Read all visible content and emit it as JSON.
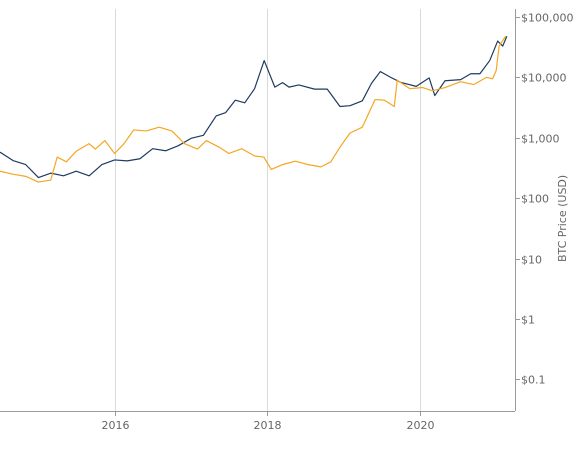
{
  "chart_data": {
    "type": "line",
    "title": "",
    "xlabel": "",
    "ylabel": "BTC Price (USD)",
    "y_scale": "log",
    "ylim": [
      0.03,
      100000
    ],
    "xlim": [
      "2014-07-01",
      "2021-04-01"
    ],
    "grid": {
      "x": true,
      "y": false
    },
    "y_ticks": [
      {
        "value": 100000,
        "label": "$100,000"
      },
      {
        "value": 10000,
        "label": "$10,000"
      },
      {
        "value": 1000,
        "label": "$1,000"
      },
      {
        "value": 100,
        "label": "$100"
      },
      {
        "value": 10,
        "label": "$10"
      },
      {
        "value": 1,
        "label": "$1"
      },
      {
        "value": 0.1,
        "label": "$0.1"
      }
    ],
    "x_ticks": [
      {
        "value": "2016-01-01",
        "label": "2016"
      },
      {
        "value": "2018-01-01",
        "label": "2018"
      },
      {
        "value": "2020-01-01",
        "label": "2020"
      }
    ],
    "series": [
      {
        "color": "#1f3a5f",
        "points": [
          [
            "2014-07-01",
            580
          ],
          [
            "2014-09-01",
            420
          ],
          [
            "2014-11-01",
            360
          ],
          [
            "2015-01-01",
            220
          ],
          [
            "2015-03-01",
            260
          ],
          [
            "2015-05-01",
            235
          ],
          [
            "2015-07-01",
            280
          ],
          [
            "2015-09-01",
            235
          ],
          [
            "2015-11-01",
            360
          ],
          [
            "2016-01-01",
            430
          ],
          [
            "2016-03-01",
            415
          ],
          [
            "2016-05-01",
            450
          ],
          [
            "2016-07-01",
            660
          ],
          [
            "2016-09-01",
            610
          ],
          [
            "2016-11-01",
            740
          ],
          [
            "2017-01-01",
            980
          ],
          [
            "2017-03-01",
            1100
          ],
          [
            "2017-05-01",
            2300
          ],
          [
            "2017-06-15",
            2600
          ],
          [
            "2017-08-01",
            4200
          ],
          [
            "2017-09-15",
            3800
          ],
          [
            "2017-11-01",
            6500
          ],
          [
            "2017-12-17",
            19000
          ],
          [
            "2018-02-06",
            6900
          ],
          [
            "2018-03-15",
            8200
          ],
          [
            "2018-04-15",
            6900
          ],
          [
            "2018-06-01",
            7500
          ],
          [
            "2018-08-15",
            6400
          ],
          [
            "2018-10-15",
            6400
          ],
          [
            "2018-12-15",
            3300
          ],
          [
            "2019-02-01",
            3400
          ],
          [
            "2019-04-01",
            4100
          ],
          [
            "2019-05-15",
            8000
          ],
          [
            "2019-06-26",
            12500
          ],
          [
            "2019-08-15",
            10000
          ],
          [
            "2019-10-01",
            8300
          ],
          [
            "2019-12-15",
            7100
          ],
          [
            "2020-02-15",
            9800
          ],
          [
            "2020-03-13",
            5000
          ],
          [
            "2020-05-01",
            8800
          ],
          [
            "2020-07-15",
            9200
          ],
          [
            "2020-09-01",
            11500
          ],
          [
            "2020-10-15",
            11500
          ],
          [
            "2020-12-01",
            19000
          ],
          [
            "2021-01-08",
            40000
          ],
          [
            "2021-02-01",
            33000
          ],
          [
            "2021-02-21",
            48000
          ]
        ]
      },
      {
        "color": "#f5a623",
        "points": [
          [
            "2014-07-01",
            280
          ],
          [
            "2014-09-01",
            250
          ],
          [
            "2014-11-01",
            230
          ],
          [
            "2015-01-01",
            185
          ],
          [
            "2015-03-01",
            200
          ],
          [
            "2015-04-01",
            480
          ],
          [
            "2015-05-15",
            400
          ],
          [
            "2015-07-01",
            600
          ],
          [
            "2015-09-01",
            800
          ],
          [
            "2015-10-01",
            650
          ],
          [
            "2015-11-15",
            900
          ],
          [
            "2016-01-01",
            550
          ],
          [
            "2016-02-15",
            800
          ],
          [
            "2016-04-01",
            1350
          ],
          [
            "2016-06-01",
            1300
          ],
          [
            "2016-08-01",
            1500
          ],
          [
            "2016-10-01",
            1300
          ],
          [
            "2016-12-01",
            800
          ],
          [
            "2017-02-01",
            650
          ],
          [
            "2017-03-15",
            900
          ],
          [
            "2017-05-15",
            700
          ],
          [
            "2017-07-01",
            550
          ],
          [
            "2017-09-01",
            660
          ],
          [
            "2017-11-01",
            500
          ],
          [
            "2017-12-15",
            480
          ],
          [
            "2018-01-20",
            300
          ],
          [
            "2018-03-15",
            360
          ],
          [
            "2018-05-15",
            410
          ],
          [
            "2018-07-15",
            360
          ],
          [
            "2018-09-15",
            330
          ],
          [
            "2018-11-01",
            400
          ],
          [
            "2018-12-15",
            700
          ],
          [
            "2019-02-01",
            1200
          ],
          [
            "2019-04-01",
            1500
          ],
          [
            "2019-06-01",
            4300
          ],
          [
            "2019-07-15",
            4200
          ],
          [
            "2019-09-01",
            3300
          ],
          [
            "2019-09-15",
            9000
          ],
          [
            "2019-11-15",
            6500
          ],
          [
            "2020-01-15",
            6800
          ],
          [
            "2020-03-01",
            6000
          ],
          [
            "2020-05-01",
            6800
          ],
          [
            "2020-07-15",
            8500
          ],
          [
            "2020-09-15",
            7600
          ],
          [
            "2020-11-15",
            10000
          ],
          [
            "2020-12-15",
            9500
          ],
          [
            "2021-01-01",
            13000
          ],
          [
            "2021-01-15",
            33000
          ],
          [
            "2021-02-15",
            48000
          ]
        ]
      }
    ]
  }
}
